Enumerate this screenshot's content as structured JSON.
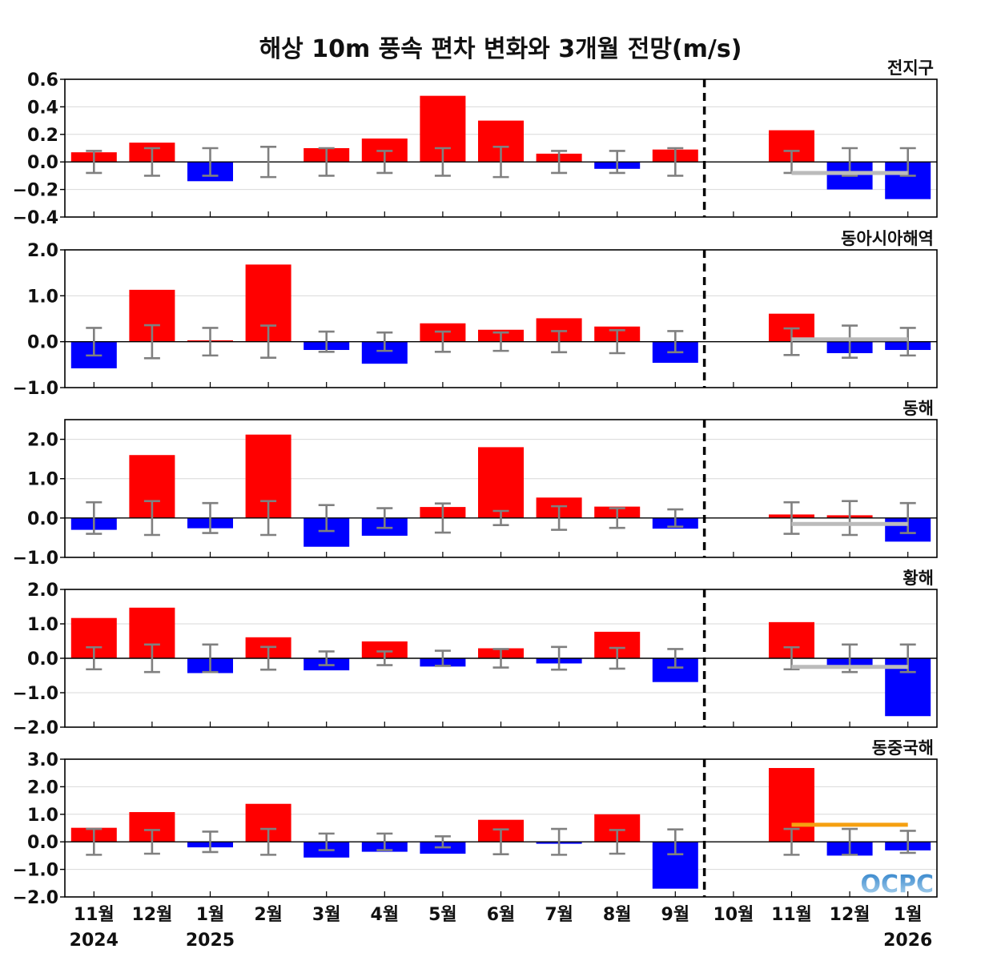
{
  "chart_data": {
    "type": "bar",
    "title": "해상 10m 풍속 편차 변화와 3개월 전망(m/s)",
    "categories": [
      "11월",
      "12월",
      "1월",
      "2월",
      "3월",
      "4월",
      "5월",
      "6월",
      "7월",
      "8월",
      "9월",
      "10월",
      "11월",
      "12월",
      "1월"
    ],
    "year_labels": [
      {
        "index": 0,
        "label": "2024"
      },
      {
        "index": 2,
        "label": "2025"
      },
      {
        "index": 14,
        "label": "2026"
      }
    ],
    "forecast_divider_after_index": 10.5,
    "colors": {
      "positive": "#ff0000",
      "negative": "#0000ff",
      "error_bar": "#808080",
      "forecast_gray": "#bbbbbb",
      "forecast_orange": "#f5a011"
    },
    "logo": "OCPC",
    "panels": [
      {
        "name": "전지구",
        "ylim": [
          -0.4,
          0.6
        ],
        "ticks": [
          -0.4,
          -0.2,
          0.0,
          0.2,
          0.4,
          0.6
        ],
        "tick_labels": [
          "−0.4",
          "−0.2",
          "0.0",
          "0.2",
          "0.4",
          "0.6"
        ],
        "values": [
          0.07,
          0.14,
          -0.14,
          0.0,
          0.1,
          0.17,
          0.48,
          0.3,
          0.06,
          -0.05,
          0.09,
          0.0,
          0.23,
          -0.2,
          -0.27
        ],
        "error": [
          0.08,
          0.1,
          0.1,
          0.11,
          0.1,
          0.08,
          0.1,
          0.11,
          0.08,
          0.08,
          0.1,
          null,
          0.08,
          0.1,
          0.1
        ],
        "forecast_line": {
          "value": -0.08,
          "color": "gray"
        }
      },
      {
        "name": "동아시아해역",
        "ylim": [
          -1.0,
          2.0
        ],
        "ticks": [
          -1.0,
          0.0,
          1.0,
          2.0
        ],
        "tick_labels": [
          "−1.0",
          "0.0",
          "1.0",
          "2.0"
        ],
        "values": [
          -0.58,
          1.13,
          0.03,
          1.68,
          -0.18,
          -0.48,
          0.4,
          0.26,
          0.51,
          0.33,
          -0.46,
          0.0,
          0.61,
          -0.25,
          -0.18
        ],
        "error": [
          0.3,
          0.36,
          0.3,
          0.35,
          0.22,
          0.2,
          0.22,
          0.2,
          0.23,
          0.25,
          0.23,
          null,
          0.29,
          0.35,
          0.3
        ],
        "forecast_line": {
          "value": 0.05,
          "color": "gray"
        }
      },
      {
        "name": "동해",
        "ylim": [
          -1.0,
          2.5
        ],
        "ticks": [
          -1.0,
          0.0,
          1.0,
          2.0
        ],
        "tick_labels": [
          "−1.0",
          "0.0",
          "1.0",
          "2.0"
        ],
        "values": [
          -0.3,
          1.6,
          -0.26,
          2.12,
          -0.73,
          -0.45,
          0.28,
          1.8,
          0.52,
          0.29,
          -0.27,
          0.0,
          0.09,
          0.07,
          -0.6
        ],
        "error": [
          0.4,
          0.43,
          0.38,
          0.43,
          0.33,
          0.25,
          0.37,
          0.18,
          0.3,
          0.25,
          0.22,
          null,
          0.4,
          0.43,
          0.38
        ],
        "forecast_line": {
          "value": -0.15,
          "color": "gray"
        }
      },
      {
        "name": "황해",
        "ylim": [
          -2.0,
          2.0
        ],
        "ticks": [
          -2.0,
          -1.0,
          0.0,
          1.0,
          2.0
        ],
        "tick_labels": [
          "−2.0",
          "−1.0",
          "0.0",
          "1.0",
          "2.0"
        ],
        "values": [
          1.17,
          1.47,
          -0.43,
          0.61,
          -0.35,
          0.49,
          -0.24,
          0.29,
          -0.15,
          0.77,
          -0.69,
          0.0,
          1.05,
          -0.3,
          -1.68
        ],
        "error": [
          0.32,
          0.4,
          0.4,
          0.33,
          0.2,
          0.2,
          0.22,
          0.27,
          0.33,
          0.3,
          0.27,
          null,
          0.32,
          0.4,
          0.4
        ],
        "forecast_line": {
          "value": -0.25,
          "color": "gray"
        }
      },
      {
        "name": "동중국해",
        "ylim": [
          -2.0,
          3.0
        ],
        "ticks": [
          -2.0,
          -1.0,
          0.0,
          1.0,
          2.0,
          3.0
        ],
        "tick_labels": [
          "−2.0",
          "−1.0",
          "0.0",
          "1.0",
          "2.0",
          "3.0"
        ],
        "values": [
          0.51,
          1.08,
          -0.2,
          1.38,
          -0.57,
          -0.36,
          -0.43,
          0.8,
          -0.07,
          1.0,
          -1.7,
          0.0,
          2.68,
          -0.5,
          -0.31
        ],
        "error": [
          0.47,
          0.43,
          0.37,
          0.47,
          0.3,
          0.3,
          0.2,
          0.45,
          0.47,
          0.43,
          0.45,
          null,
          0.47,
          0.47,
          0.4
        ],
        "forecast_line": {
          "value": 0.62,
          "color": "orange"
        }
      }
    ]
  }
}
